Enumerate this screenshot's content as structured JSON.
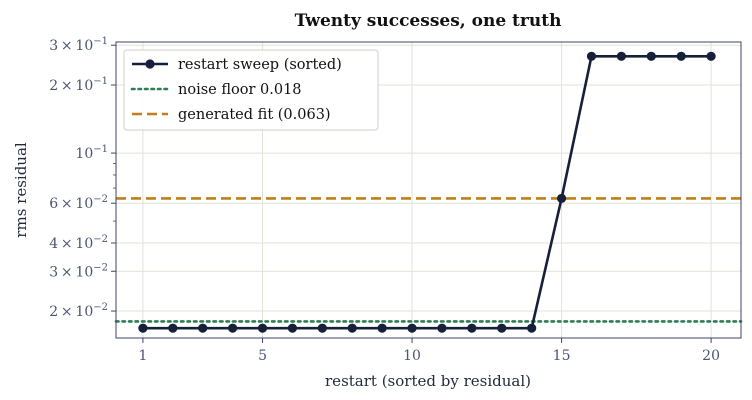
{
  "chart_data": {
    "type": "line",
    "title": "Twenty successes, one truth",
    "xlabel": "restart (sorted by residual)",
    "ylabel": "rms residual",
    "xlim": [
      0.1,
      21
    ],
    "ylim": [
      0.0152,
      0.31
    ],
    "yscale": "log",
    "grid": true,
    "legend_position": "top-left",
    "x_ticks": [
      1,
      5,
      10,
      15,
      20
    ],
    "y_ticks": [
      {
        "value": 0.3,
        "mantissa": "3",
        "exponent": "−1"
      },
      {
        "value": 0.2,
        "mantissa": "2",
        "exponent": "−1"
      },
      {
        "value": 0.1,
        "mantissa": "",
        "exponent": "−1"
      },
      {
        "value": 0.06,
        "mantissa": "6",
        "exponent": "−2"
      },
      {
        "value": 0.04,
        "mantissa": "4",
        "exponent": "−2"
      },
      {
        "value": 0.03,
        "mantissa": "3",
        "exponent": "−2"
      },
      {
        "value": 0.02,
        "mantissa": "2",
        "exponent": "−2"
      }
    ],
    "series": [
      {
        "name": "restart sweep (sorted)",
        "color": "#16203a",
        "style": "solid-markers",
        "x": [
          1,
          2,
          3,
          4,
          5,
          6,
          7,
          8,
          9,
          10,
          11,
          12,
          13,
          14,
          15,
          16,
          17,
          18,
          19,
          20
        ],
        "y": [
          0.0168,
          0.0168,
          0.0168,
          0.0168,
          0.0168,
          0.0168,
          0.0168,
          0.0168,
          0.0168,
          0.0168,
          0.0168,
          0.0168,
          0.0168,
          0.0168,
          0.063,
          0.268,
          0.268,
          0.268,
          0.268,
          0.268
        ]
      }
    ],
    "reference_lines": [
      {
        "name": "noise floor 0.018",
        "value": 0.018,
        "color": "#2e7d56",
        "style": "dotted"
      },
      {
        "name": "generated fit (0.063)",
        "value": 0.063,
        "color": "#c07f1a",
        "style": "dashed"
      }
    ],
    "colors": {
      "axes": "#3c4464",
      "grid": "#e2e2d8",
      "text": "#1f2a3c"
    }
  }
}
